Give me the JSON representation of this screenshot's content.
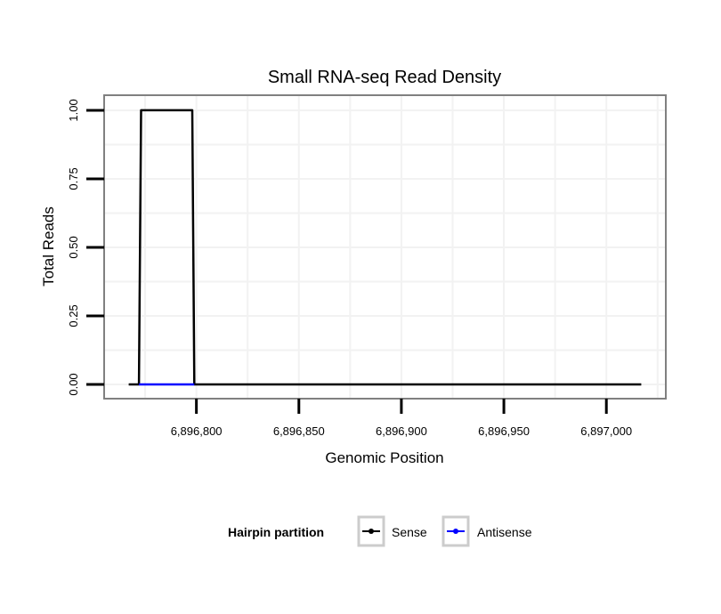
{
  "chart_data": {
    "type": "line",
    "title": "Small RNA-seq Read Density",
    "xlabel": "Genomic Position",
    "ylabel": "Total Reads",
    "xlim": [
      6896755,
      6897029
    ],
    "ylim": [
      -0.052,
      1.055
    ],
    "x_ticks": [
      6896800,
      6896850,
      6896900,
      6896950,
      6897000
    ],
    "x_tick_labels": [
      "6,896,800",
      "6,896,850",
      "6,896,900",
      "6,896,950",
      "6,897,000"
    ],
    "y_ticks": [
      0,
      0.25,
      0.5,
      0.75,
      1.0
    ],
    "y_tick_labels": [
      "0.00",
      "0.25",
      "0.50",
      "0.75",
      "1.00"
    ],
    "grid": true,
    "legend": {
      "title": "Hairpin partition",
      "placement": "bottom",
      "entries": [
        "Sense",
        "Antisense"
      ]
    },
    "series": [
      {
        "name": "Sense",
        "color": "#000000",
        "x": [
          6896767,
          6896772,
          6896773,
          6896798,
          6896799,
          6897017
        ],
        "y": [
          0,
          0,
          1,
          1,
          0,
          0
        ]
      },
      {
        "name": "Antisense",
        "color": "#0000ff",
        "x": [
          6896772,
          6896799
        ],
        "y": [
          0,
          0
        ]
      }
    ]
  }
}
